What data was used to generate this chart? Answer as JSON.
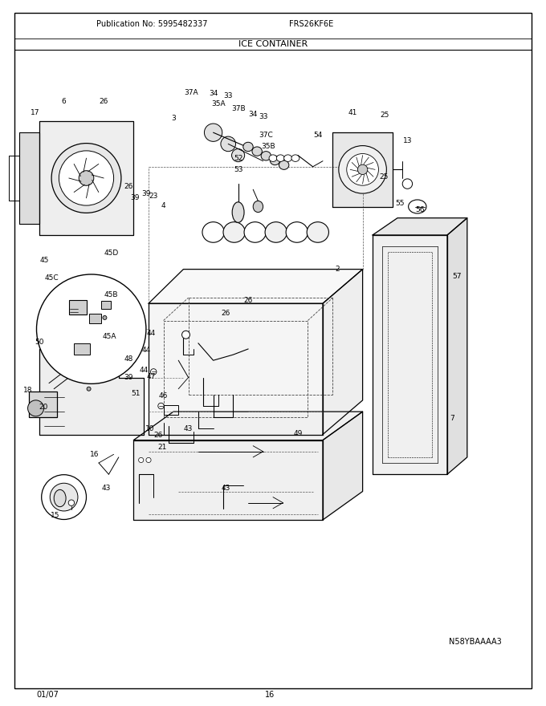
{
  "title": "ICE CONTAINER",
  "publication": "Publication No: 5995482337",
  "model": "FRS26KF6E",
  "diagram_id": "N58YBAAAA3",
  "date": "01/07",
  "page": "16",
  "bg_color": "#ffffff",
  "text_color": "#000000",
  "fig_width": 6.8,
  "fig_height": 8.8,
  "dpi": 100
}
